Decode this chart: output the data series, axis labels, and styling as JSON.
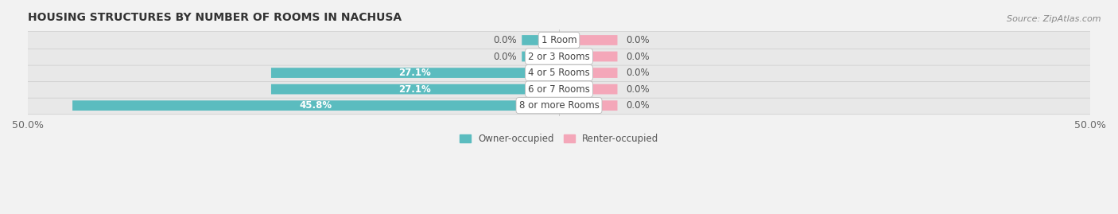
{
  "title": "HOUSING STRUCTURES BY NUMBER OF ROOMS IN NACHUSA",
  "source": "Source: ZipAtlas.com",
  "categories": [
    "1 Room",
    "2 or 3 Rooms",
    "4 or 5 Rooms",
    "6 or 7 Rooms",
    "8 or more Rooms"
  ],
  "owner_values": [
    0.0,
    0.0,
    27.1,
    27.1,
    45.8
  ],
  "renter_values": [
    0.0,
    0.0,
    0.0,
    0.0,
    0.0
  ],
  "owner_color": "#5bbcbf",
  "renter_color": "#f4a7b9",
  "owner_label": "Owner-occupied",
  "renter_label": "Renter-occupied",
  "xlim": [
    -50,
    50
  ],
  "xticklabels": [
    "50.0%",
    "50.0%"
  ],
  "bar_height": 0.62,
  "background_color": "#f2f2f2",
  "row_bg_color": "#e8e8e8",
  "title_fontsize": 10,
  "label_fontsize": 8.5,
  "tick_fontsize": 9,
  "source_fontsize": 8,
  "min_bar_display": 3.5,
  "renter_display": 5.5,
  "value_label_inside_threshold": 10.0
}
